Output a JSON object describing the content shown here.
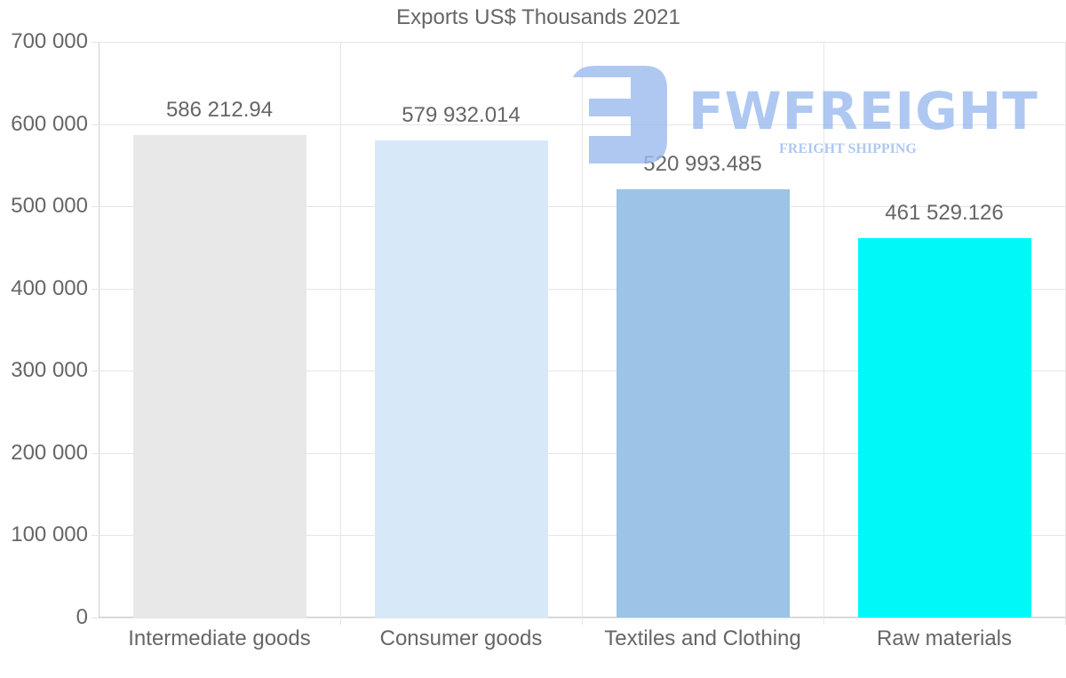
{
  "chart_data": {
    "type": "bar",
    "title": "Exports US$ Thousands 2021",
    "xlabel": "",
    "ylabel": "",
    "ylim": [
      0,
      700000
    ],
    "yticks": [
      "0",
      "100 000",
      "200 000",
      "300 000",
      "400 000",
      "500 000",
      "600 000",
      "700 000"
    ],
    "categories": [
      "Intermediate goods",
      "Consumer goods",
      "Textiles and Clothing",
      "Raw materials"
    ],
    "values": [
      586212.94,
      579932.014,
      520993.485,
      461529.126
    ],
    "value_labels": [
      "586 212.94",
      "579 932.014",
      "520 993.485",
      "461 529.126"
    ],
    "colors": [
      "#e8e8e8",
      "#d7e8f9",
      "#9bc4e6",
      "#00f8f8"
    ],
    "grid": true,
    "legend": null
  },
  "watermark": {
    "brand": "FWFREIGHT",
    "tagline": "FREIGHT SHIPPING",
    "color": "#9bbbef"
  }
}
